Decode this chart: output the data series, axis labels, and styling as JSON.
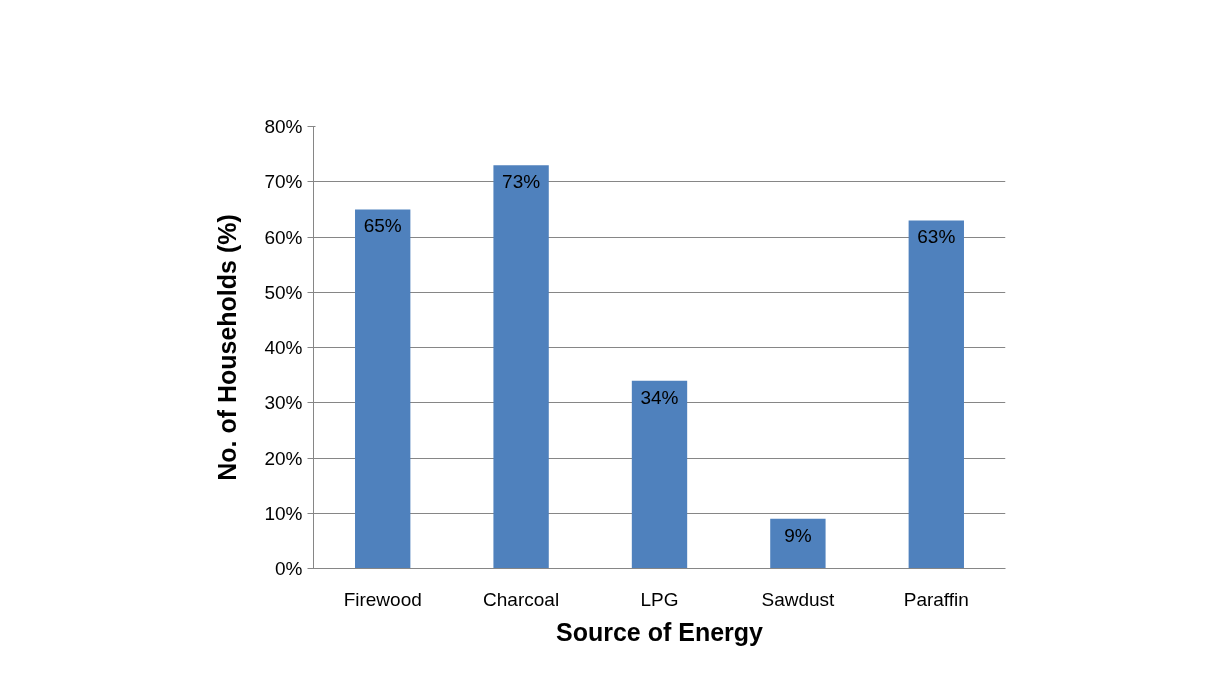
{
  "chart_data": {
    "type": "bar",
    "xlabel": "Source of Energy",
    "ylabel": "No. of Households (%)",
    "categories": [
      "Firewood",
      "Charcoal",
      "LPG",
      "Sawdust",
      "Paraffin"
    ],
    "values": [
      65,
      73,
      34,
      9,
      63
    ],
    "value_labels": [
      "65%",
      "73%",
      "34%",
      "9%",
      "63%"
    ],
    "color": "#4f81bd",
    "ylim": [
      0,
      80
    ],
    "yticks": [
      {
        "value": 0,
        "label": "0%"
      },
      {
        "value": 10,
        "label": "10%"
      },
      {
        "value": 20,
        "label": "20%"
      },
      {
        "value": 30,
        "label": "30%"
      },
      {
        "value": 40,
        "label": "40%"
      },
      {
        "value": 50,
        "label": "50%"
      },
      {
        "value": 60,
        "label": "60%"
      },
      {
        "value": 70,
        "label": "70%"
      },
      {
        "value": 80,
        "label": "80%"
      }
    ],
    "grid": "y"
  }
}
